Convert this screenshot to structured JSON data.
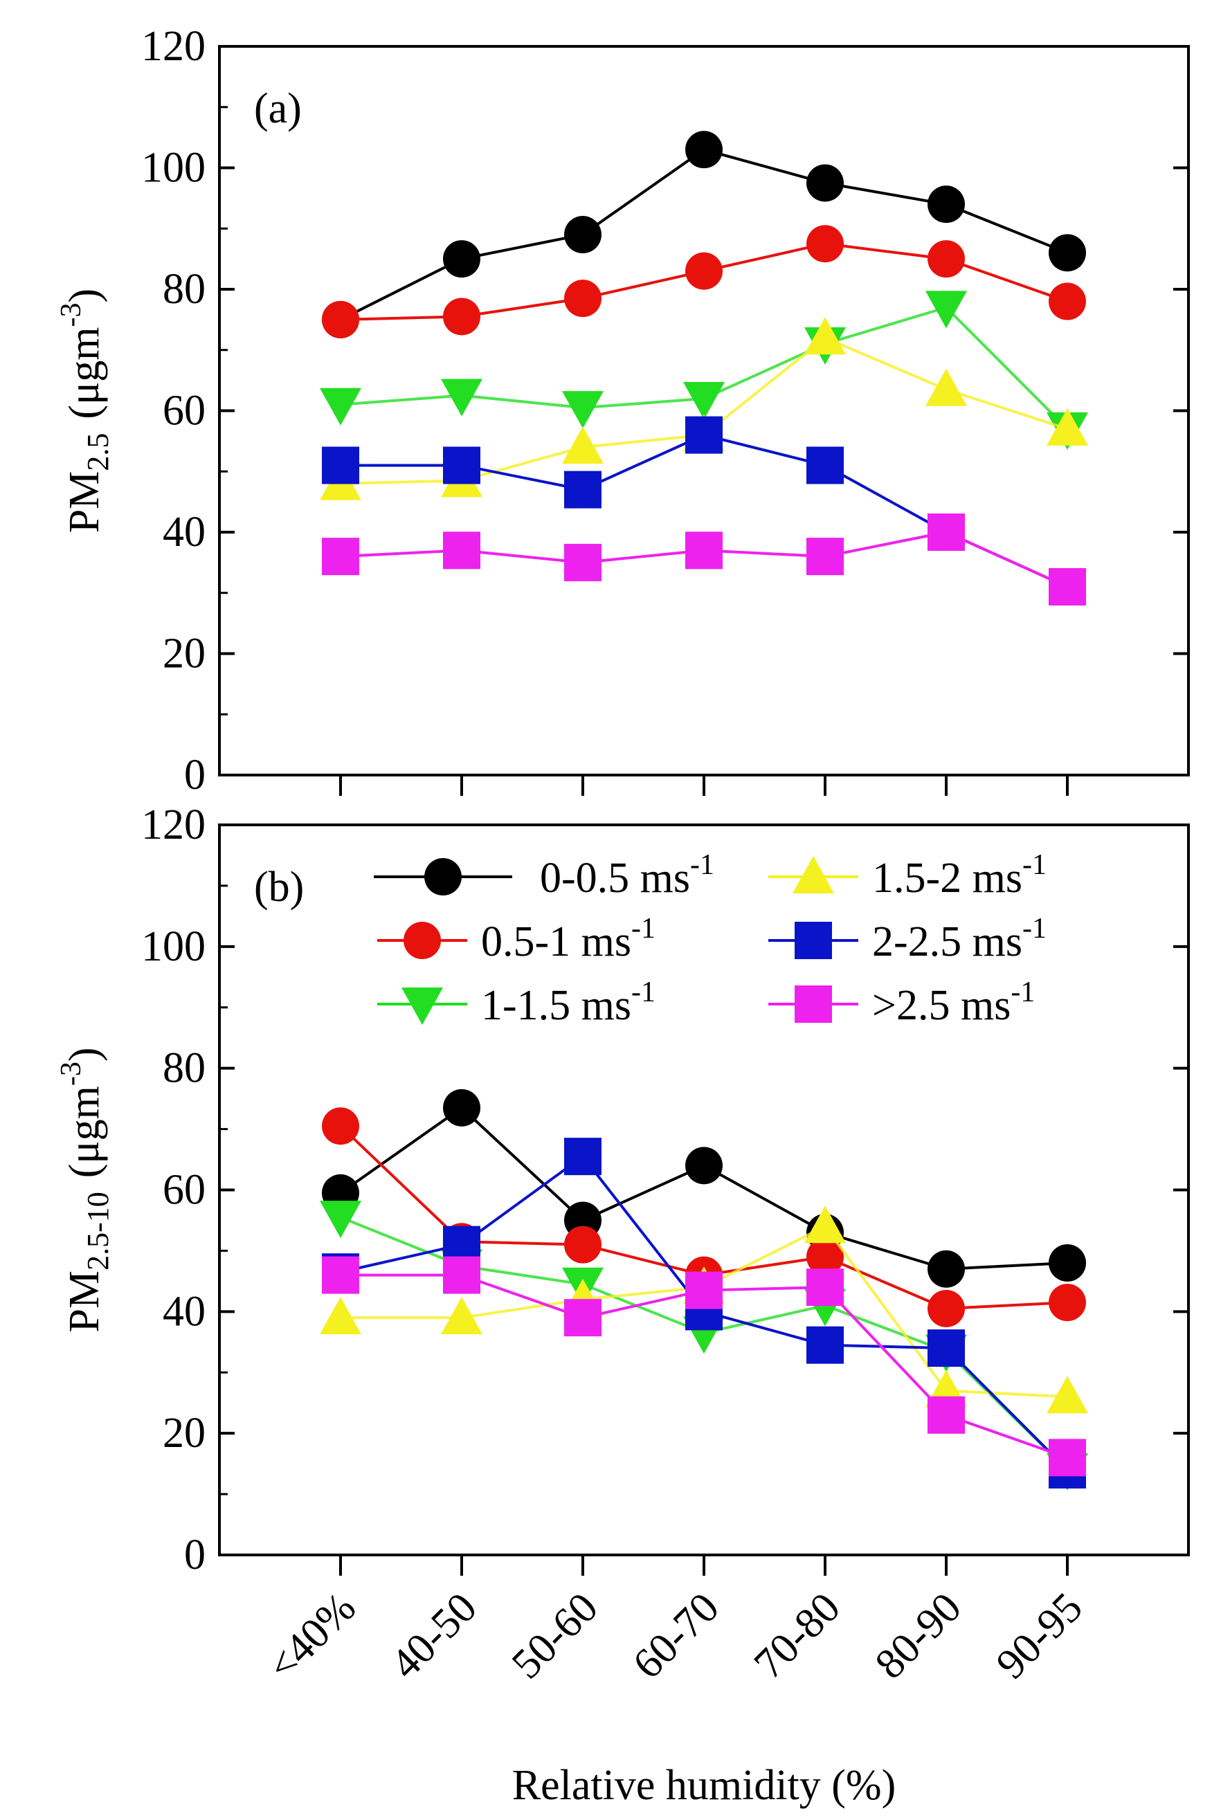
{
  "chart_data": [
    {
      "type": "line",
      "panel_label": "(a)",
      "ylabel": {
        "main": "PM",
        "sub": "2.5",
        "unit": "(μgm",
        "sup": "-3",
        "close": ")"
      },
      "ylim": [
        0,
        120
      ],
      "yticks": [
        0,
        20,
        40,
        60,
        80,
        100,
        120
      ],
      "categories": [
        "<40%",
        "40-50",
        "50-60",
        "60-70",
        "70-80",
        "80-90",
        "90-95"
      ],
      "series": [
        {
          "name": "0-0.5 ms",
          "sup": "-1",
          "color": "#000000",
          "marker": "circle",
          "values": [
            75,
            85,
            89,
            103,
            97.5,
            94,
            86
          ]
        },
        {
          "name": "0.5-1 ms",
          "sup": "-1",
          "color": "#e8120c",
          "marker": "circle",
          "values": [
            75,
            75.5,
            78.5,
            83,
            87.5,
            85,
            78
          ]
        },
        {
          "name": "1-1.5 ms",
          "sup": "-1",
          "color": "#22dd22",
          "marker": "triangle-down",
          "values": [
            61,
            62.5,
            60.5,
            62,
            71,
            77,
            57
          ]
        },
        {
          "name": "1.5-2 ms",
          "sup": "-1",
          "color": "#f5f020",
          "marker": "triangle-up",
          "values": [
            48,
            48.5,
            54,
            56,
            72,
            63.5,
            57
          ]
        },
        {
          "name": "2-2.5 ms",
          "sup": "-1",
          "color": "#0a14c8",
          "marker": "square",
          "values": [
            51,
            51,
            47,
            56,
            51,
            40,
            31
          ]
        },
        {
          "name": ">2.5 ms",
          "sup": "-1",
          "color": "#ee22ee",
          "marker": "square",
          "values": [
            36,
            37,
            35,
            37,
            36,
            40,
            31
          ]
        }
      ]
    },
    {
      "type": "line",
      "panel_label": "(b)",
      "ylabel": {
        "main": "PM",
        "sub": "2.5-10",
        "unit": "(μgm",
        "sup": "-3",
        "close": ")"
      },
      "ylim": [
        0,
        120
      ],
      "yticks": [
        0,
        20,
        40,
        60,
        80,
        100,
        120
      ],
      "categories": [
        "<40%",
        "40-50",
        "50-60",
        "60-70",
        "70-80",
        "80-90",
        "90-95"
      ],
      "xlabel": "Relative humidity  (%)",
      "legend_position": "top",
      "series": [
        {
          "name": "0-0.5 ms",
          "sup": "-1",
          "color": "#000000",
          "marker": "circle",
          "values": [
            59.5,
            73.5,
            55,
            64,
            53,
            47,
            48
          ]
        },
        {
          "name": "0.5-1 ms",
          "sup": "-1",
          "color": "#e8120c",
          "marker": "circle",
          "values": [
            70.5,
            51.5,
            51,
            46,
            49,
            40.5,
            41.5
          ]
        },
        {
          "name": "1-1.5 ms",
          "sup": "-1",
          "color": "#22dd22",
          "marker": "triangle-down",
          "values": [
            55.5,
            47.5,
            44.5,
            36.5,
            41,
            33.5,
            14
          ]
        },
        {
          "name": "1.5-2 ms",
          "sup": "-1",
          "color": "#f5f020",
          "marker": "triangle-up",
          "values": [
            39,
            39,
            42,
            44,
            54,
            27,
            26
          ]
        },
        {
          "name": "2-2.5 ms",
          "sup": "-1",
          "color": "#0a14c8",
          "marker": "square",
          "values": [
            46.5,
            51,
            65.5,
            40,
            34.5,
            34,
            14
          ]
        },
        {
          "name": ">2.5 ms",
          "sup": "-1",
          "color": "#ee22ee",
          "marker": "square",
          "values": [
            46,
            46,
            39,
            43.5,
            44,
            23,
            16
          ]
        }
      ]
    }
  ]
}
